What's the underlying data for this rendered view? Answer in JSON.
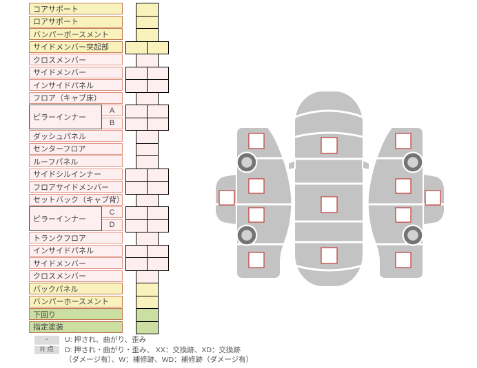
{
  "table": {
    "rows": [
      {
        "label": "コアサポート",
        "color": "yellow",
        "span": 1
      },
      {
        "label": "ロアサポート",
        "color": "yellow",
        "span": 1
      },
      {
        "label": "バンパーボースメント",
        "color": "yellow",
        "span": 1
      },
      {
        "label": "サイドメンバー突起部",
        "color": "yellow",
        "span": 2
      },
      {
        "label": "クロスメンバー",
        "color": "pink",
        "span": 1
      },
      {
        "label": "サイドメンバー",
        "color": "pink",
        "span": 2
      },
      {
        "label": "インサイドパネル",
        "color": "pink",
        "span": 2
      },
      {
        "label": "フロア（キャブ床）",
        "color": "pink",
        "span": 1
      },
      {
        "label": "ピラーインナー",
        "color": "pink",
        "span": 2,
        "subs": [
          "A",
          "B"
        ]
      },
      {
        "label": "ダッシュパネル",
        "color": "pink",
        "span": 1
      },
      {
        "label": "センターフロア",
        "color": "pink",
        "span": 1
      },
      {
        "label": "ルーフパネル",
        "color": "pink",
        "span": 1
      },
      {
        "label": "サイドシルインナー",
        "color": "pink",
        "span": 2
      },
      {
        "label": "フロアサイドメンバー",
        "color": "pink",
        "span": 2
      },
      {
        "label": "セットバック（キャブ背）",
        "color": "pink",
        "span": 1
      },
      {
        "label": "ピラーインナー",
        "color": "pink",
        "span": 2,
        "subs": [
          "C",
          "D"
        ]
      },
      {
        "label": "トランクフロア",
        "color": "pink",
        "span": 1
      },
      {
        "label": "インサイドパネル",
        "color": "pink",
        "span": 2
      },
      {
        "label": "サイドメンバー",
        "color": "pink",
        "span": 2
      },
      {
        "label": "クロスメンバー",
        "color": "pink",
        "span": 1
      },
      {
        "label": "バックパネル",
        "color": "yellow",
        "span": 1
      },
      {
        "label": "バンパーホースメント",
        "color": "yellow",
        "span": 1
      },
      {
        "label": "下回り",
        "color": "green",
        "span": 1
      },
      {
        "label": "指定塗装",
        "color": "green",
        "span": 1
      }
    ]
  },
  "legend": {
    "rows": [
      {
        "badge": "-",
        "text": "U: 押され、曲がり、歪み"
      },
      {
        "badge": "R 点",
        "text": "D: 押され・曲がり・歪み、 XX：交換跡、XD：交換跡"
      },
      {
        "badge": "",
        "text": "（ダメージ有）、W：補修跡、WD：補修跡（ダメージ有）"
      }
    ]
  },
  "colors": {
    "yellow_fill": "#f9f2bc",
    "yellow_border": "#c57a50",
    "pink_fill": "#fdefef",
    "pink_border": "#e09383",
    "green_fill": "#cadfa1",
    "green_border": "#c57a50",
    "cell_red": "#c23b36",
    "car_gray": "#c3c3c3",
    "wheel_dark": "#747474",
    "wheel_light": "#d2d2d2",
    "badge_bg": "#dcdcdc",
    "text": "#444444"
  }
}
